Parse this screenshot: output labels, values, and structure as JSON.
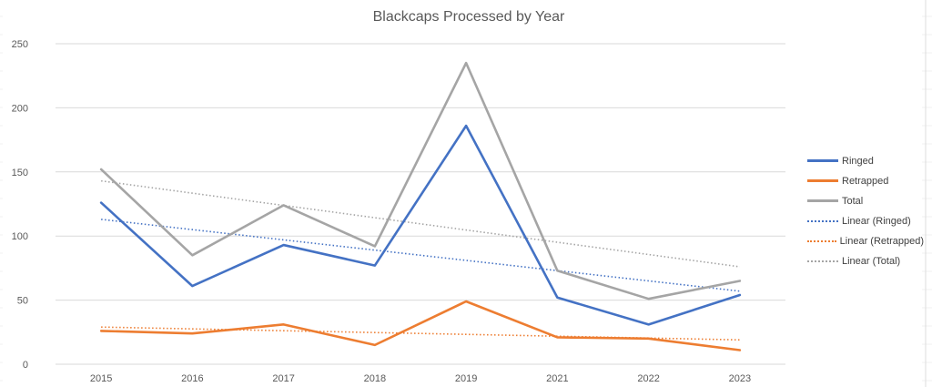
{
  "chart_data": {
    "type": "line",
    "title": "Blackcaps Processed by Year",
    "categories": [
      "2015",
      "2016",
      "2017",
      "2018",
      "2019",
      "2021",
      "2022",
      "2023"
    ],
    "ylim": [
      0,
      250
    ],
    "yticks": [
      0,
      50,
      100,
      150,
      200,
      250
    ],
    "grid": true,
    "legend_position": "right",
    "series": [
      {
        "name": "Ringed",
        "color": "#4472C4",
        "style": "solid",
        "values": [
          126,
          61,
          93,
          77,
          186,
          52,
          31,
          54
        ]
      },
      {
        "name": "Retrapped",
        "color": "#ED7D31",
        "style": "solid",
        "values": [
          26,
          24,
          31,
          15,
          49,
          21,
          20,
          11
        ]
      },
      {
        "name": "Total",
        "color": "#A5A5A5",
        "style": "solid",
        "values": [
          152,
          85,
          124,
          92,
          235,
          73,
          51,
          65
        ]
      }
    ],
    "trendlines": [
      {
        "name": "Linear (Ringed)",
        "color": "#4472C4",
        "style": "dotted",
        "values": [
          113,
          57
        ]
      },
      {
        "name": "Linear (Retrapped)",
        "color": "#ED7D31",
        "style": "dotted",
        "values": [
          29,
          19
        ]
      },
      {
        "name": "Linear (Total)",
        "color": "#A5A5A5",
        "style": "dotted",
        "values": [
          143,
          76
        ]
      }
    ]
  }
}
